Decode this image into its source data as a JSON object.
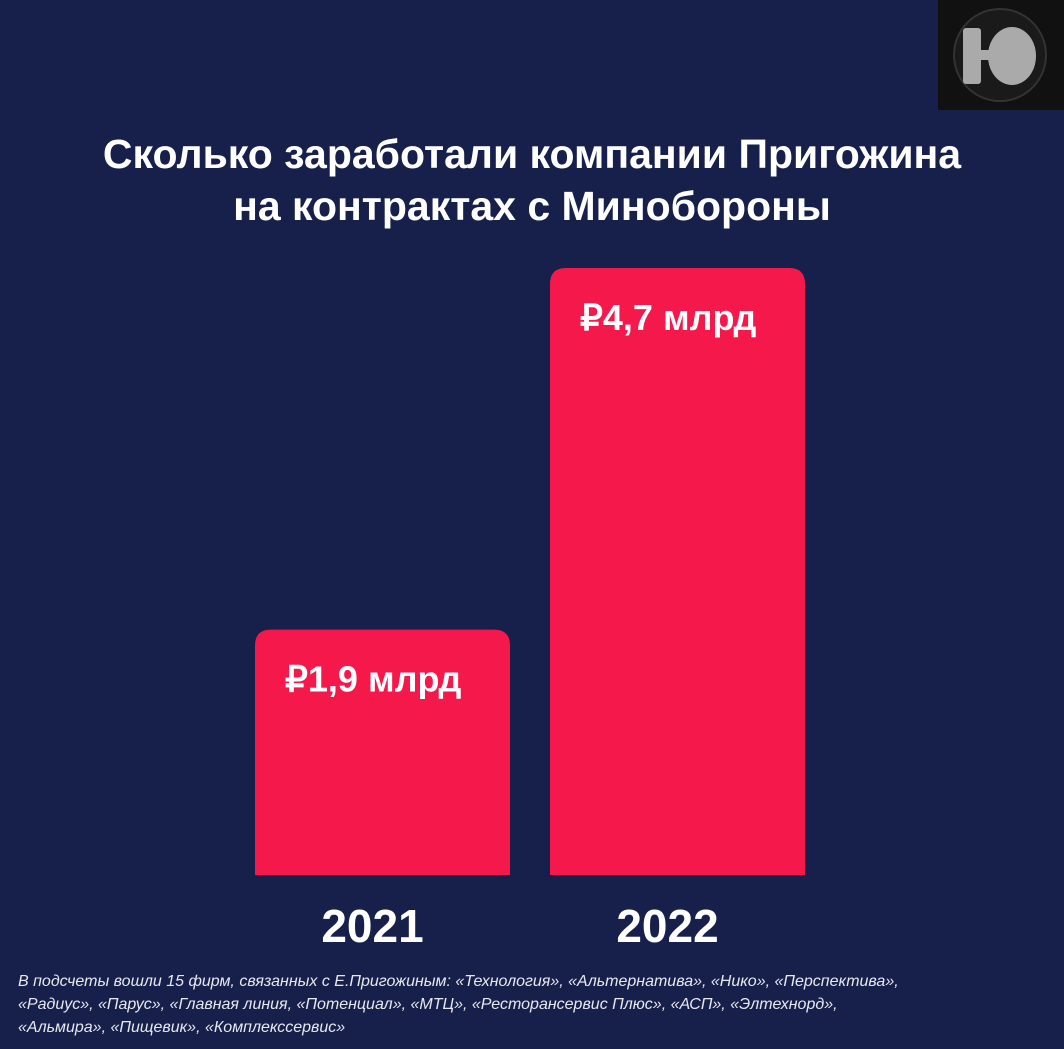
{
  "chart_data": {
    "type": "bar",
    "title": "Сколько заработали компании Пригожина\nна контрактах с Минобороны",
    "categories": [
      "2021",
      "2022"
    ],
    "values": [
      1.9,
      4.7
    ],
    "value_labels": [
      "₽1,9 млрд",
      "₽4,7 млрд"
    ],
    "color": "#f5194b",
    "note": "В подсчеты вошли 15 фирм, связанных с Е.Пригожиным:  «Технология», «Альтернатива», «Нико», «Перспектива»,\n«Радиус», «Парус», «Главная линия, «Потенциал», «МТЦ», «Ресторансервис Плюс», «АСП», «Элтехнорд»,\n«Альмира», «Пищевик», «Комплекссервис»"
  }
}
